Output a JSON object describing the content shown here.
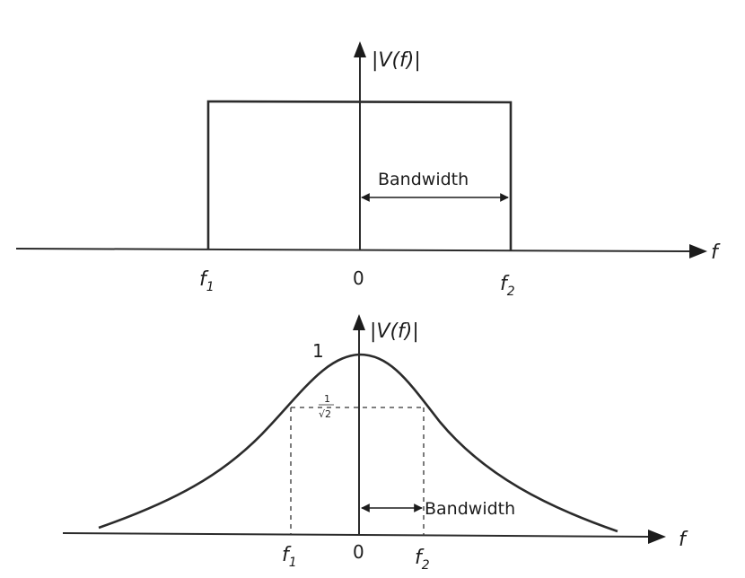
{
  "top_panel": {
    "y_axis_label": "|V(f)|",
    "x_axis_label": "f",
    "left_edge_label": "f",
    "left_edge_sub": "1",
    "origin_label": "0",
    "right_edge_label": "f",
    "right_edge_sub": "2",
    "bandwidth_label": "Bandwidth"
  },
  "bottom_panel": {
    "y_axis_label": "|V(f)|",
    "x_axis_label": "f",
    "peak_label": "1",
    "cutoff_label_num": "1",
    "cutoff_label_den": "√2",
    "left_edge_label": "f",
    "left_edge_sub": "1",
    "origin_label": "0",
    "right_edge_label": "f",
    "right_edge_sub": "2",
    "bandwidth_label": "Bandwidth"
  }
}
